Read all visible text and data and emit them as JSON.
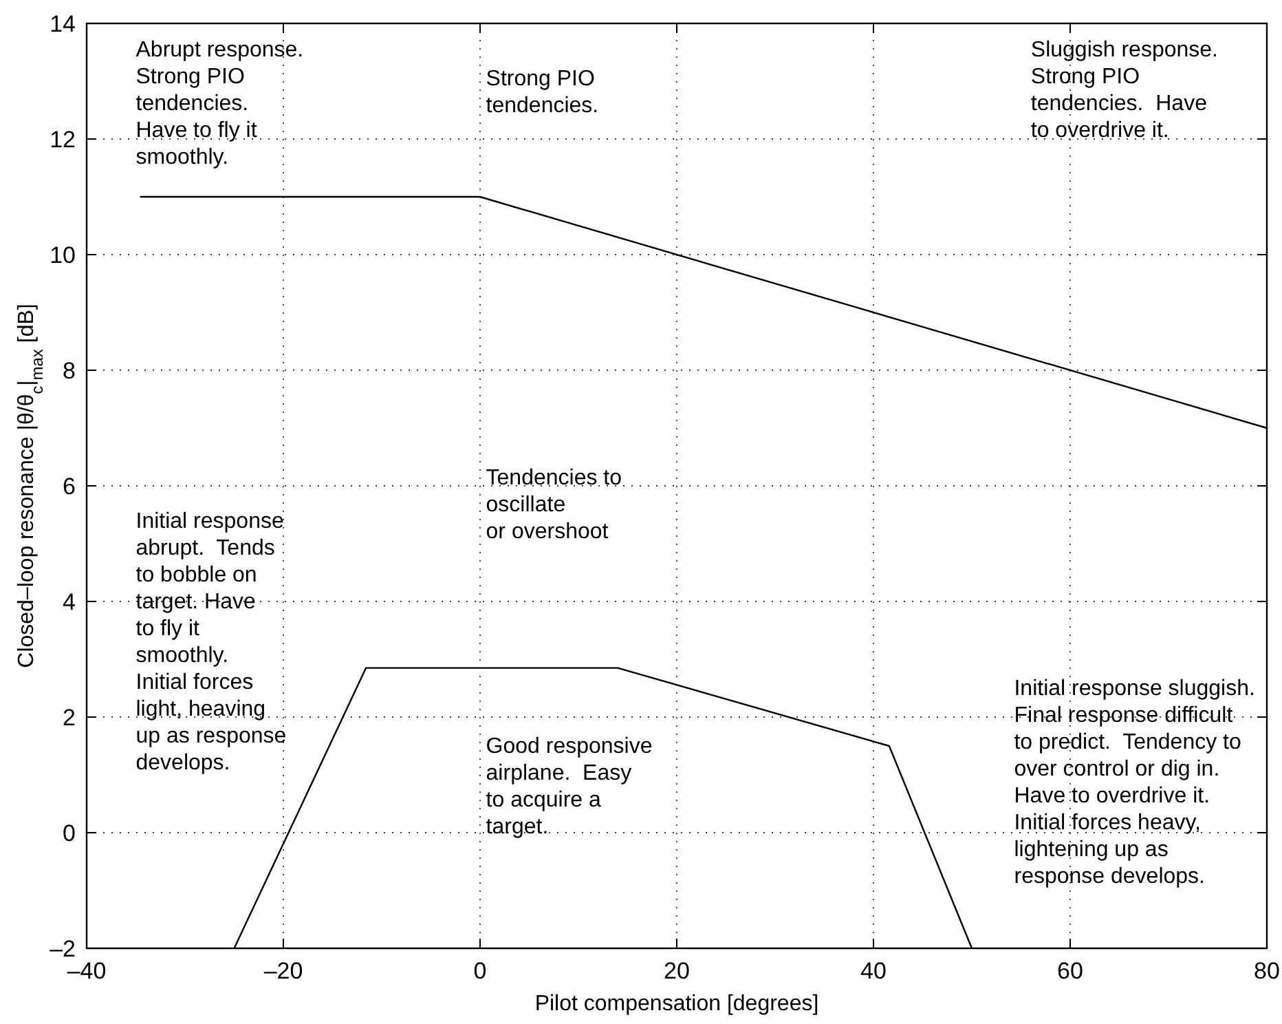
{
  "chart_data": {
    "type": "line",
    "xlabel": "Pilot compensation [degrees]",
    "ylabel": "Closed–loop resonance |θ/θ$_{c}$|$_{max}$ [dB]",
    "xlim": [
      -40,
      80
    ],
    "ylim": [
      -2,
      14
    ],
    "xticks": [
      {
        "value": -40,
        "label": "–40"
      },
      {
        "value": -20,
        "label": "–20"
      },
      0,
      20,
      40,
      60,
      80
    ],
    "yticks": [
      {
        "value": -2,
        "label": "–2"
      },
      0,
      2,
      4,
      6,
      8,
      10,
      12,
      14
    ],
    "grid": true,
    "line_style": "solid",
    "marker": "none",
    "series": [
      {
        "color": "#000000",
        "x": [
          -34.5,
          0,
          80
        ],
        "values": [
          11,
          11,
          7
        ]
      },
      {
        "color": "#000000",
        "x": [
          -25,
          -11.6,
          14,
          41.6,
          50
        ],
        "values": [
          -2,
          2.85,
          2.85,
          1.5,
          -2
        ]
      }
    ],
    "annotations": [
      "Abrupt response.\nStrong PIO\ntendencies.\nHave to fly it\nsmoothly.",
      "Strong PIO\ntendencies.",
      "Sluggish response.\nStrong PIO\ntendencies.  Have\nto overdrive it.",
      "Tendencies to\noscillate\nor overshoot",
      "Initial response\nabrupt.  Tends\nto bobble on\ntarget. Have\nto fly it\nsmoothly.\nInitial forces\nlight, heaving\nup as response\ndevelops.",
      "Good responsive\nairplane.  Easy\nto acquire a\ntarget.",
      "Initial response sluggish.\nFinal response difficult\nto predict.  Tendency to\nover control or dig in.\nHave to overdrive it.\nInitial forces heavy,\nlightening up as\nresponse develops."
    ]
  }
}
